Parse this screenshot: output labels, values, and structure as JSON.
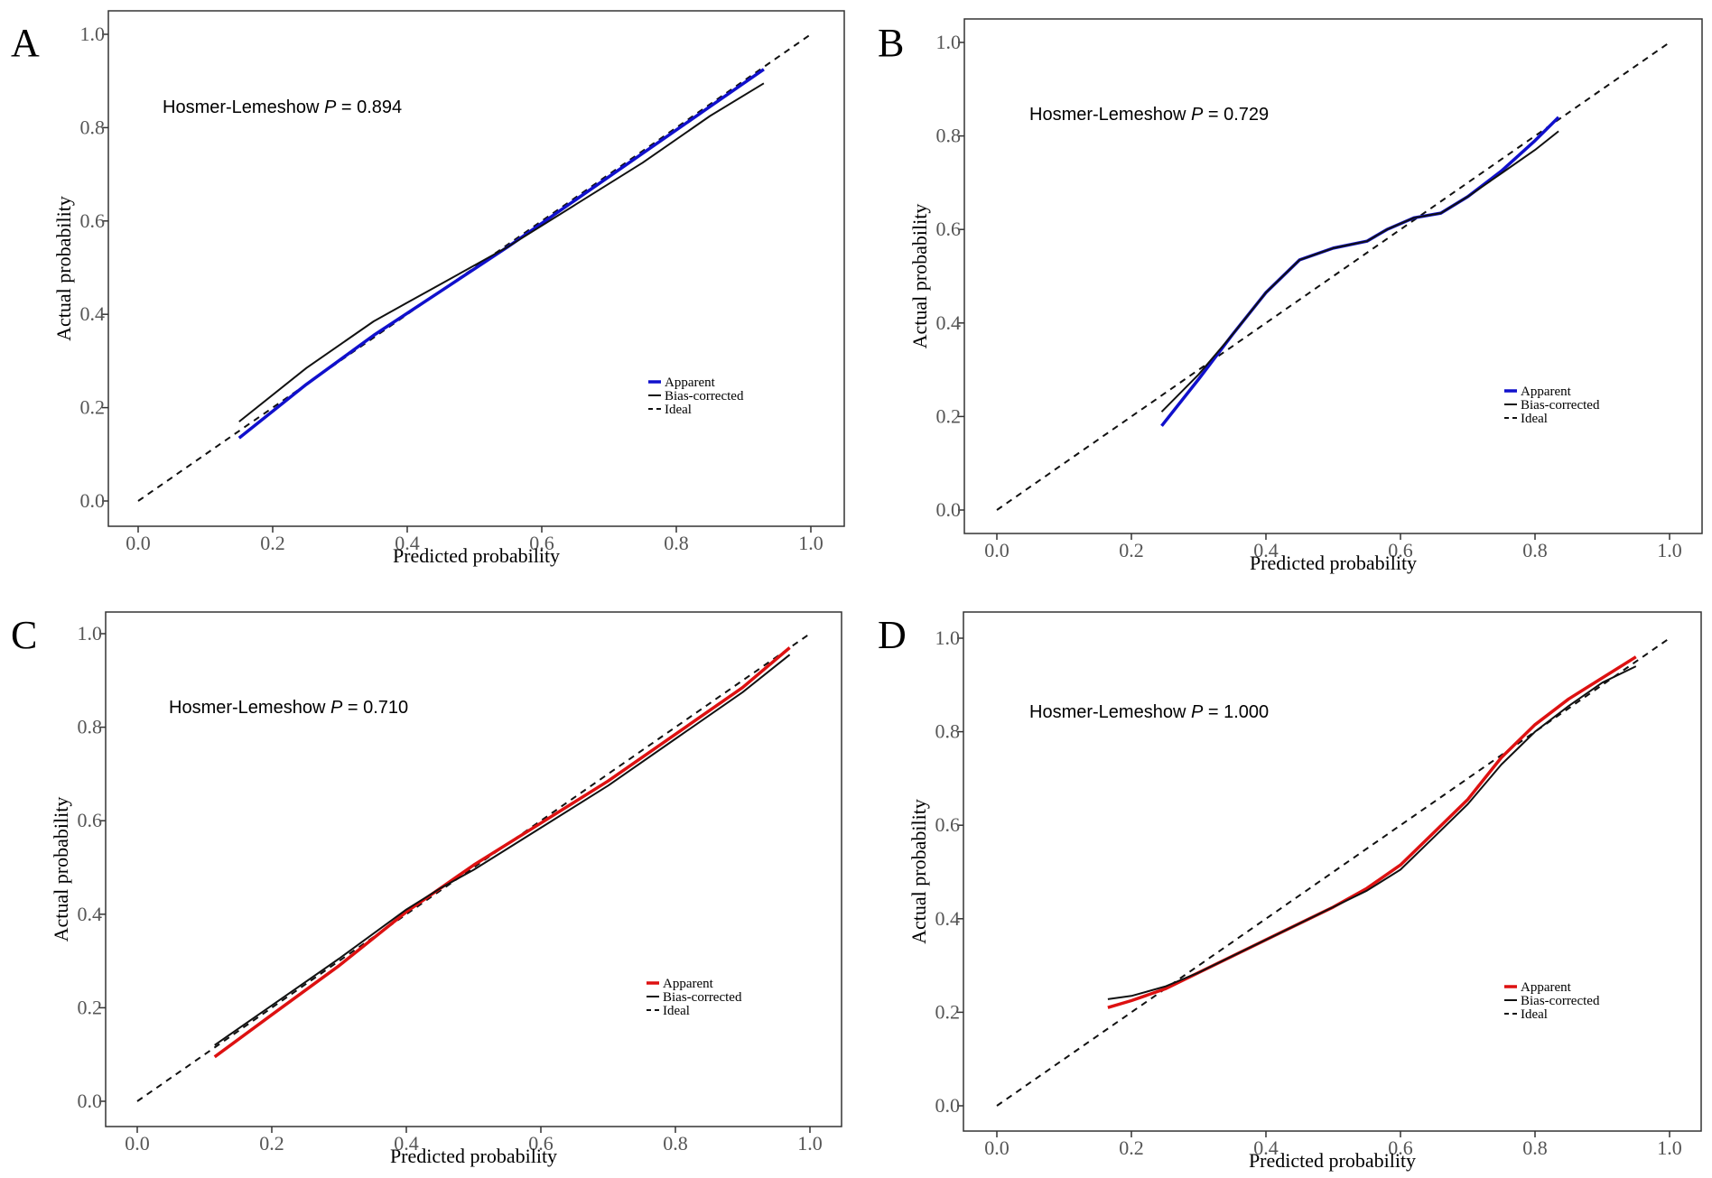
{
  "chart_data": [
    {
      "type": "line",
      "panel_label": "A",
      "xlabel": "Predicted probability",
      "ylabel": "Actual probability",
      "xlim": [
        0,
        1
      ],
      "ylim": [
        0,
        1
      ],
      "xticks": [
        "0.0",
        "0.2",
        "0.4",
        "0.6",
        "0.8",
        "1.0"
      ],
      "yticks": [
        "0.0",
        "0.2",
        "0.4",
        "0.6",
        "0.8",
        "1.0"
      ],
      "annotation": {
        "prefix": "Hosmer-Lemeshow ",
        "p_symbol": "P",
        "value_text": " = 0.894"
      },
      "legend": [
        "Apparent",
        "Bias-corrected",
        "Ideal"
      ],
      "apparent_color": "#1010cc",
      "series": [
        {
          "name": "Apparent",
          "x": [
            0.15,
            0.25,
            0.35,
            0.45,
            0.55,
            0.65,
            0.75,
            0.85,
            0.93
          ],
          "y": [
            0.135,
            0.25,
            0.355,
            0.45,
            0.545,
            0.645,
            0.745,
            0.845,
            0.925
          ]
        },
        {
          "name": "Bias-corrected",
          "x": [
            0.15,
            0.25,
            0.35,
            0.4,
            0.45,
            0.55,
            0.65,
            0.75,
            0.85,
            0.93
          ],
          "y": [
            0.17,
            0.285,
            0.385,
            0.425,
            0.465,
            0.545,
            0.635,
            0.725,
            0.825,
            0.895
          ]
        },
        {
          "name": "Ideal",
          "x": [
            0,
            1
          ],
          "y": [
            0,
            1
          ]
        }
      ]
    },
    {
      "type": "line",
      "panel_label": "B",
      "xlabel": "Predicted probability",
      "ylabel": "Actual probability",
      "xlim": [
        0,
        1
      ],
      "ylim": [
        0,
        1
      ],
      "xticks": [
        "0.0",
        "0.2",
        "0.4",
        "0.6",
        "0.8",
        "1.0"
      ],
      "yticks": [
        "0.0",
        "0.2",
        "0.4",
        "0.6",
        "0.8",
        "1.0"
      ],
      "annotation": {
        "prefix": "Hosmer-Lemeshow ",
        "p_symbol": "P",
        "value_text": " = 0.729"
      },
      "legend": [
        "Apparent",
        "Bias-corrected",
        "Ideal"
      ],
      "apparent_color": "#1010cc",
      "series": [
        {
          "name": "Apparent",
          "x": [
            0.245,
            0.3,
            0.35,
            0.4,
            0.45,
            0.5,
            0.55,
            0.58,
            0.62,
            0.66,
            0.7,
            0.75,
            0.8,
            0.835
          ],
          "y": [
            0.18,
            0.28,
            0.375,
            0.465,
            0.535,
            0.56,
            0.575,
            0.6,
            0.625,
            0.635,
            0.67,
            0.725,
            0.79,
            0.84
          ]
        },
        {
          "name": "Bias-corrected",
          "x": [
            0.245,
            0.3,
            0.35,
            0.4,
            0.45,
            0.5,
            0.55,
            0.58,
            0.62,
            0.66,
            0.7,
            0.75,
            0.8,
            0.835
          ],
          "y": [
            0.21,
            0.29,
            0.375,
            0.465,
            0.535,
            0.56,
            0.575,
            0.6,
            0.625,
            0.635,
            0.67,
            0.72,
            0.77,
            0.81
          ]
        },
        {
          "name": "Ideal",
          "x": [
            0,
            1
          ],
          "y": [
            0,
            1
          ]
        }
      ]
    },
    {
      "type": "line",
      "panel_label": "C",
      "xlabel": "Predicted probability",
      "ylabel": "Actual probability",
      "xlim": [
        0,
        1
      ],
      "ylim": [
        0,
        1
      ],
      "xticks": [
        "0.0",
        "0.2",
        "0.4",
        "0.6",
        "0.8",
        "1.0"
      ],
      "yticks": [
        "0.0",
        "0.2",
        "0.4",
        "0.6",
        "0.8",
        "1.0"
      ],
      "annotation": {
        "prefix": "Hosmer-Lemeshow ",
        "p_symbol": "P",
        "value_text": " = 0.710"
      },
      "legend": [
        "Apparent",
        "Bias-corrected",
        "Ideal"
      ],
      "apparent_color": "#dd1111",
      "series": [
        {
          "name": "Apparent",
          "x": [
            0.115,
            0.2,
            0.3,
            0.4,
            0.45,
            0.5,
            0.6,
            0.7,
            0.8,
            0.9,
            0.97
          ],
          "y": [
            0.095,
            0.185,
            0.29,
            0.405,
            0.455,
            0.505,
            0.595,
            0.685,
            0.785,
            0.885,
            0.97
          ]
        },
        {
          "name": "Bias-corrected",
          "x": [
            0.115,
            0.2,
            0.3,
            0.4,
            0.45,
            0.5,
            0.6,
            0.7,
            0.8,
            0.9,
            0.97
          ],
          "y": [
            0.12,
            0.205,
            0.305,
            0.41,
            0.455,
            0.495,
            0.585,
            0.675,
            0.775,
            0.875,
            0.955
          ]
        },
        {
          "name": "Ideal",
          "x": [
            0,
            1
          ],
          "y": [
            0,
            1
          ]
        }
      ]
    },
    {
      "type": "line",
      "panel_label": "D",
      "xlabel": "Predicted probability",
      "ylabel": "Actual probability",
      "xlim": [
        0,
        1
      ],
      "ylim": [
        0,
        1
      ],
      "xticks": [
        "0.0",
        "0.2",
        "0.4",
        "0.6",
        "0.8",
        "1.0"
      ],
      "yticks": [
        "0.0",
        "0.2",
        "0.4",
        "0.6",
        "0.8",
        "1.0"
      ],
      "annotation": {
        "prefix": "Hosmer-Lemeshow ",
        "p_symbol": "P",
        "value_text": " = 1.000"
      },
      "legend": [
        "Apparent",
        "Bias-corrected",
        "Ideal"
      ],
      "apparent_color": "#dd1111",
      "series": [
        {
          "name": "Apparent",
          "x": [
            0.165,
            0.2,
            0.25,
            0.3,
            0.4,
            0.5,
            0.55,
            0.6,
            0.65,
            0.7,
            0.75,
            0.8,
            0.85,
            0.9,
            0.95
          ],
          "y": [
            0.21,
            0.225,
            0.25,
            0.285,
            0.355,
            0.425,
            0.465,
            0.515,
            0.585,
            0.655,
            0.745,
            0.815,
            0.87,
            0.915,
            0.96
          ]
        },
        {
          "name": "Bias-corrected",
          "x": [
            0.165,
            0.2,
            0.25,
            0.3,
            0.4,
            0.5,
            0.55,
            0.6,
            0.65,
            0.7,
            0.75,
            0.8,
            0.85,
            0.9,
            0.95
          ],
          "y": [
            0.228,
            0.235,
            0.255,
            0.285,
            0.355,
            0.425,
            0.46,
            0.505,
            0.575,
            0.645,
            0.73,
            0.8,
            0.855,
            0.905,
            0.94
          ]
        },
        {
          "name": "Ideal",
          "x": [
            0,
            1
          ],
          "y": [
            0,
            1
          ]
        }
      ]
    }
  ]
}
